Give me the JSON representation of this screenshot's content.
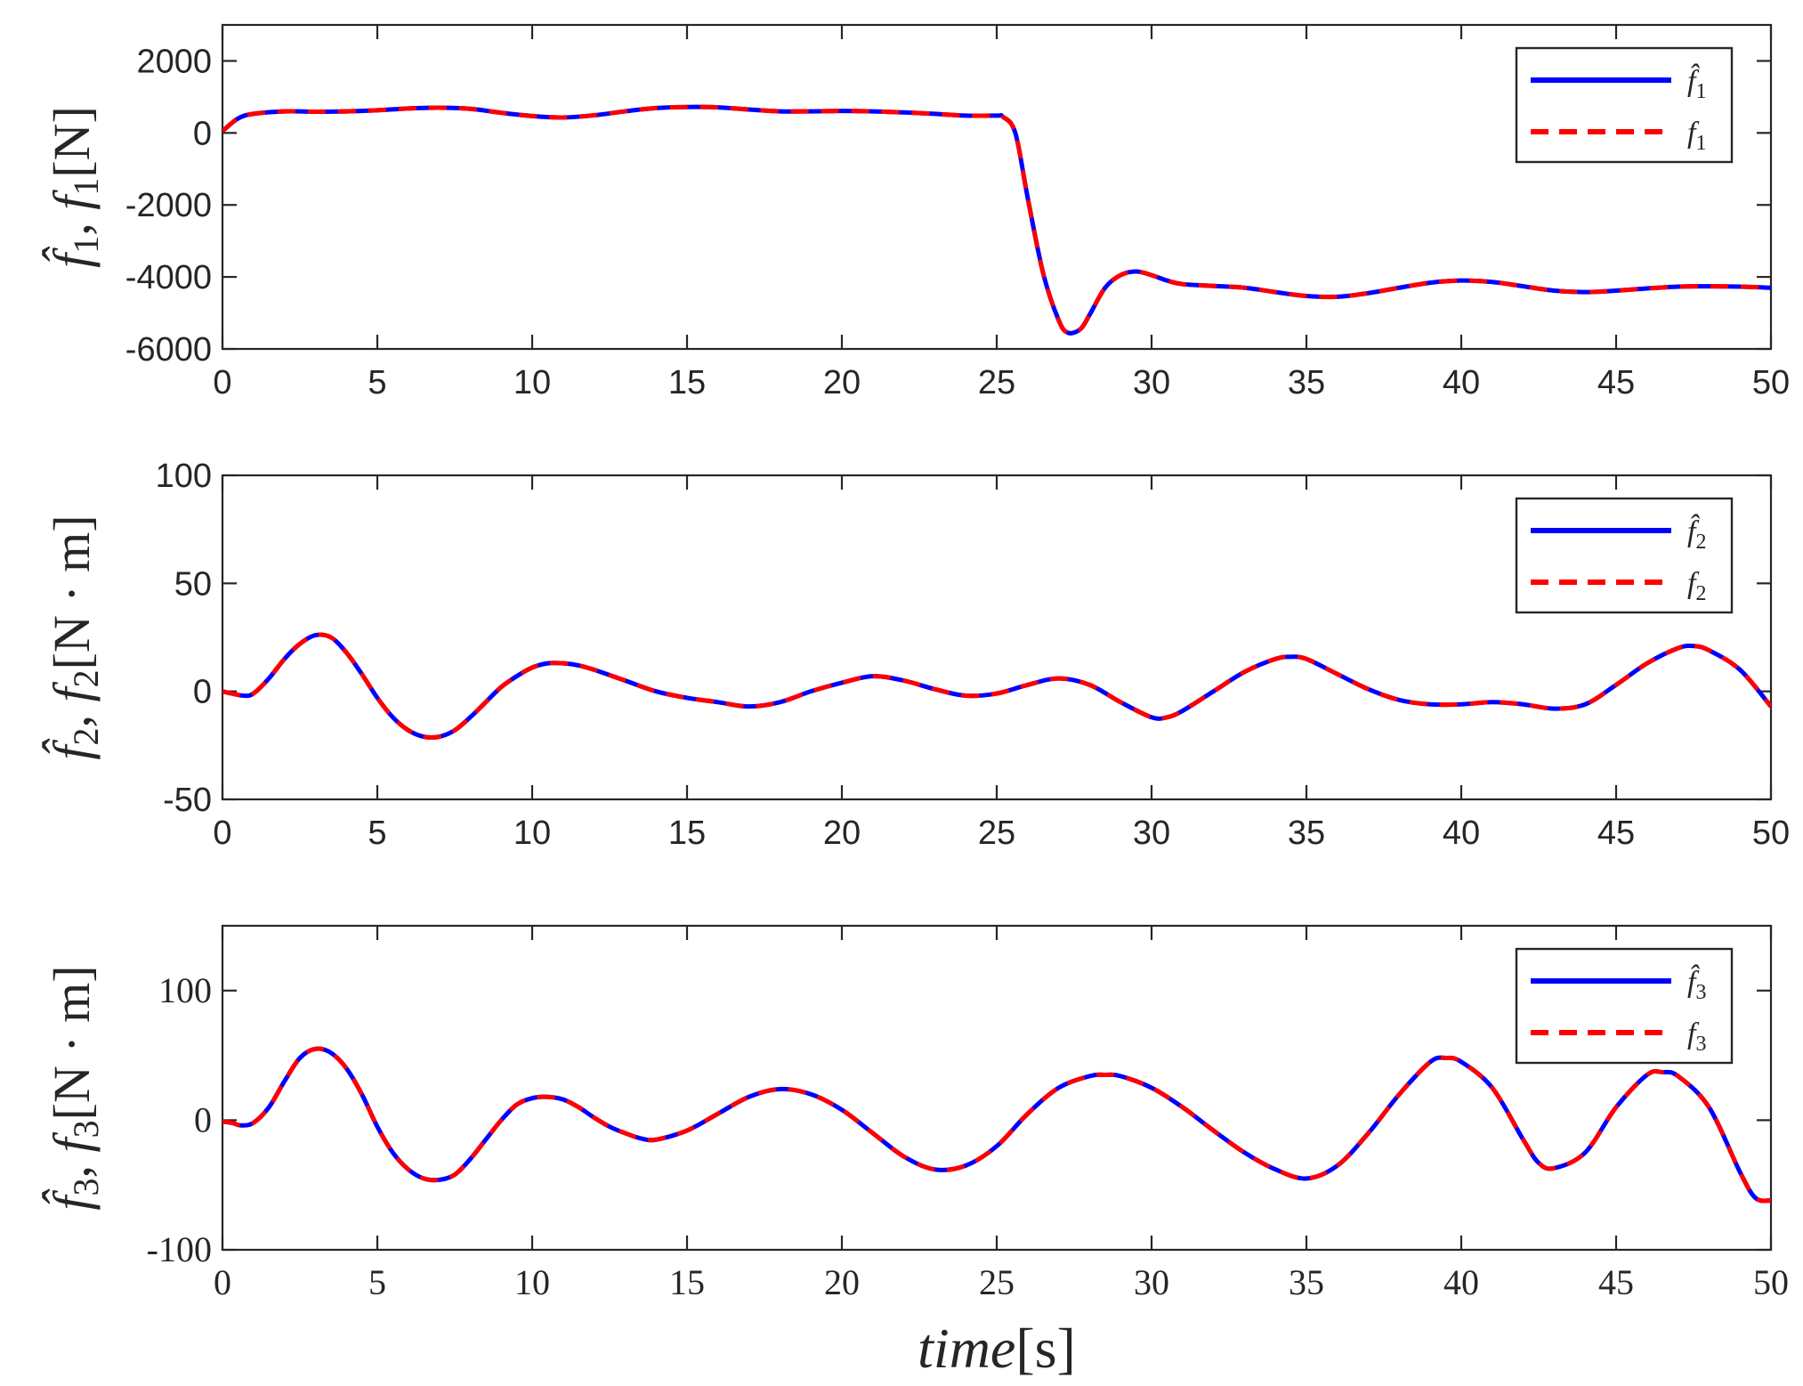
{
  "chart_data": [
    {
      "type": "line",
      "panel": "top",
      "ylabel": "f̂1, f1[N]",
      "ylabel_parts": {
        "hat_var": "f̂",
        "hat_sub": "1",
        "var": "f",
        "sub": "1",
        "unit": "[N]"
      },
      "xlim": [
        0,
        50
      ],
      "ylim": [
        -6000,
        3000
      ],
      "xticks": [
        "0",
        "5",
        "10",
        "15",
        "20",
        "25",
        "30",
        "35",
        "40",
        "45",
        "50"
      ],
      "yticks": [
        {
          "value": 2000,
          "label": "2000"
        },
        {
          "value": 0,
          "label": "0"
        },
        {
          "value": -2000,
          "label": "-2000"
        },
        {
          "value": -4000,
          "label": "-4000"
        },
        {
          "value": -6000,
          "label": "-6000"
        }
      ],
      "tick_font": "sans",
      "legend_position": "top-right",
      "legend": [
        {
          "var": "f̂",
          "sub": "1",
          "color": "#0000ff",
          "style": "solid"
        },
        {
          "var": "f",
          "sub": "1",
          "color": "#ff0000",
          "style": "dashed"
        }
      ],
      "series_points": {
        "x": [
          0,
          0.5,
          1,
          2,
          3,
          4,
          5,
          6,
          7,
          8,
          9,
          10,
          11,
          12,
          13,
          14,
          15,
          16,
          17,
          18,
          19,
          20,
          21,
          22,
          23,
          24,
          25,
          25.2,
          25.6,
          26,
          26.5,
          27,
          27.3,
          27.7,
          28,
          28.5,
          29,
          29.5,
          30,
          30.5,
          31,
          32,
          33,
          34,
          35,
          36,
          37,
          38,
          39,
          40,
          41,
          42,
          43,
          44,
          45,
          46,
          47,
          48,
          49,
          50
        ],
        "y": [
          50,
          400,
          530,
          600,
          590,
          600,
          630,
          680,
          700,
          670,
          560,
          470,
          430,
          490,
          600,
          690,
          720,
          710,
          650,
          600,
          600,
          610,
          600,
          570,
          530,
          480,
          480,
          450,
          0,
          -1800,
          -3900,
          -5200,
          -5550,
          -5450,
          -5050,
          -4300,
          -3950,
          -3850,
          -3950,
          -4100,
          -4200,
          -4250,
          -4300,
          -4420,
          -4530,
          -4550,
          -4450,
          -4300,
          -4160,
          -4100,
          -4140,
          -4260,
          -4380,
          -4420,
          -4380,
          -4320,
          -4270,
          -4260,
          -4270,
          -4300
        ]
      }
    },
    {
      "type": "line",
      "panel": "middle",
      "ylabel": "f̂2, f2[N · m]",
      "ylabel_parts": {
        "hat_var": "f̂",
        "hat_sub": "2",
        "var": "f",
        "sub": "2",
        "unit": "[N · m]"
      },
      "xlim": [
        0,
        50
      ],
      "ylim": [
        -50,
        100
      ],
      "xticks": [
        "0",
        "5",
        "10",
        "15",
        "20",
        "25",
        "30",
        "35",
        "40",
        "45",
        "50"
      ],
      "yticks": [
        {
          "value": 100,
          "label": "100"
        },
        {
          "value": 50,
          "label": "50"
        },
        {
          "value": 0,
          "label": "0"
        },
        {
          "value": -50,
          "label": "-50"
        }
      ],
      "tick_font": "sans",
      "legend_position": "top-right",
      "legend": [
        {
          "var": "f̂",
          "sub": "2",
          "color": "#0000ff",
          "style": "solid"
        },
        {
          "var": "f",
          "sub": "2",
          "color": "#ff0000",
          "style": "dashed"
        }
      ],
      "series_points": {
        "x": [
          0,
          0.3,
          0.7,
          1,
          1.5,
          2,
          2.5,
          3,
          3.5,
          4,
          4.5,
          5,
          5.5,
          6,
          6.5,
          7,
          7.5,
          8,
          8.5,
          9,
          9.5,
          10,
          10.5,
          11,
          11.5,
          12,
          13,
          14,
          15,
          16,
          17,
          18,
          19,
          20,
          21,
          22,
          23,
          24,
          25,
          26,
          27,
          28,
          29,
          30,
          30.5,
          31,
          32,
          33,
          34,
          34.5,
          35,
          36,
          37,
          38,
          39,
          40,
          41,
          42,
          43,
          44,
          45,
          46,
          47,
          47.5,
          48,
          49,
          50
        ],
        "y": [
          0,
          -1,
          -2,
          -1,
          6,
          15,
          22,
          26,
          25,
          18,
          8,
          -3,
          -12,
          -18,
          -21,
          -21,
          -18,
          -12,
          -5,
          2,
          7,
          11,
          13,
          13,
          12,
          10,
          5,
          0,
          -3,
          -5,
          -7,
          -5,
          0,
          4,
          7,
          5,
          1,
          -2,
          -1,
          3,
          6,
          3,
          -5,
          -12,
          -12,
          -9,
          0,
          9,
          15,
          16,
          15,
          8,
          1,
          -4,
          -6,
          -6,
          -5,
          -6,
          -8,
          -6,
          3,
          13,
          20,
          21,
          19,
          10,
          -7
        ]
      }
    },
    {
      "type": "line",
      "panel": "bottom",
      "ylabel": "f̂3, f3[N · m]",
      "ylabel_parts": {
        "hat_var": "f̂",
        "hat_sub": "3",
        "var": "f",
        "sub": "3",
        "unit": "[N · m]"
      },
      "xlabel": "time[s]",
      "xlabel_parts": {
        "var": "time",
        "unit": "[s]"
      },
      "xlim": [
        0,
        50
      ],
      "ylim": [
        -100,
        150
      ],
      "xticks": [
        "0",
        "5",
        "10",
        "15",
        "20",
        "25",
        "30",
        "35",
        "40",
        "45",
        "50"
      ],
      "yticks": [
        {
          "value": 100,
          "label": "100"
        },
        {
          "value": 0,
          "label": "0"
        },
        {
          "value": -100,
          "label": "-100"
        }
      ],
      "tick_font": "serif",
      "legend_position": "top-right",
      "legend": [
        {
          "var": "f̂",
          "sub": "3",
          "color": "#0000ff",
          "style": "solid"
        },
        {
          "var": "f",
          "sub": "3",
          "color": "#ff0000",
          "style": "dashed"
        }
      ],
      "series_points": {
        "x": [
          0,
          0.3,
          0.6,
          1,
          1.5,
          2,
          2.5,
          3,
          3.5,
          4,
          4.5,
          5,
          5.5,
          6,
          6.5,
          7,
          7.5,
          8,
          8.5,
          9,
          9.5,
          10,
          10.5,
          11,
          11.5,
          12,
          12.5,
          13,
          13.5,
          14,
          15,
          16,
          17,
          18,
          19,
          20,
          21,
          22,
          23,
          24,
          25,
          26,
          27,
          28,
          28.5,
          29,
          30,
          31,
          32,
          33,
          34,
          35,
          36,
          37,
          38,
          39,
          39.5,
          40,
          41,
          42,
          42.5,
          43,
          44,
          45,
          46,
          46.5,
          47,
          48,
          49,
          49.5,
          50
        ],
        "y": [
          -1,
          -2,
          -4,
          -2,
          10,
          30,
          48,
          55,
          52,
          40,
          20,
          -5,
          -25,
          -38,
          -45,
          -46,
          -42,
          -30,
          -15,
          0,
          12,
          17,
          18,
          16,
          10,
          2,
          -5,
          -10,
          -14,
          -15,
          -8,
          5,
          18,
          24,
          20,
          8,
          -10,
          -28,
          -38,
          -35,
          -20,
          5,
          25,
          34,
          35,
          34,
          25,
          10,
          -8,
          -25,
          -38,
          -45,
          -35,
          -10,
          20,
          45,
          48,
          45,
          25,
          -15,
          -33,
          -37,
          -25,
          10,
          35,
          37,
          34,
          10,
          -40,
          -60,
          -62
        ]
      }
    }
  ]
}
